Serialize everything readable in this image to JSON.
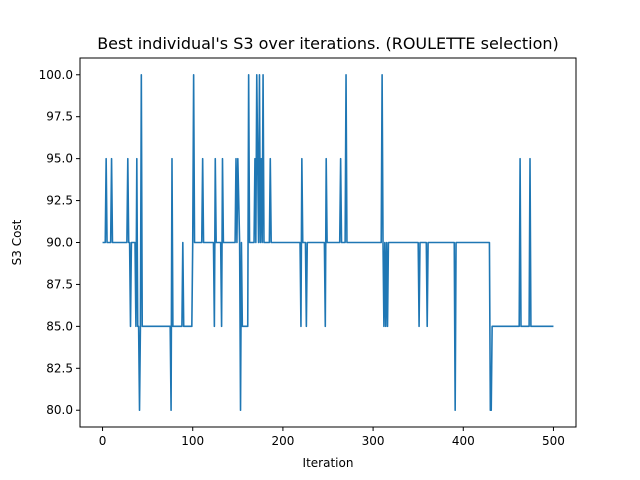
{
  "chart_data": {
    "type": "line",
    "title": "Best individual's S3 over iterations. (ROULETTE selection)",
    "xlabel": "Iteration",
    "ylabel": "S3 Cost",
    "xlim": [
      -25,
      525
    ],
    "ylim": [
      79,
      101
    ],
    "xticks": [
      0,
      100,
      200,
      300,
      400,
      500
    ],
    "yticks": [
      80.0,
      82.5,
      85.0,
      87.5,
      90.0,
      92.5,
      95.0,
      97.5,
      100.0
    ],
    "ytick_labels": [
      "80.0",
      "82.5",
      "85.0",
      "87.5",
      "90.0",
      "92.5",
      "95.0",
      "97.5",
      "100.0"
    ],
    "grid": false,
    "color": "#1f77b4",
    "series": [
      {
        "x": [
          0,
          3,
          4,
          5,
          6,
          9,
          10,
          11,
          12,
          27,
          28,
          29,
          30,
          31,
          32,
          35,
          36,
          37,
          38,
          39,
          40,
          41,
          42,
          43,
          44,
          45,
          46,
          75,
          76,
          77,
          78,
          87,
          88,
          89,
          90,
          99,
          100,
          101,
          102,
          110,
          111,
          112,
          113,
          123,
          124,
          125,
          126,
          131,
          132,
          133,
          134,
          147,
          148,
          149,
          150,
          152,
          153,
          154,
          155,
          160,
          161,
          162,
          163,
          168,
          169,
          170,
          171,
          173,
          174,
          175,
          176,
          177,
          178,
          179,
          180,
          185,
          186,
          187,
          188,
          219,
          220,
          221,
          222,
          225,
          226,
          227,
          228,
          246,
          247,
          248,
          249,
          263,
          264,
          265,
          266,
          269,
          270,
          271,
          272,
          309,
          310,
          311,
          312,
          313,
          314,
          315,
          316,
          317,
          318,
          350,
          351,
          352,
          353,
          359,
          360,
          361,
          362,
          390,
          391,
          392,
          393,
          429,
          430,
          431,
          432,
          433,
          434,
          462,
          463,
          464,
          465,
          473,
          474,
          475,
          476,
          500
        ],
        "y": [
          90,
          90,
          95,
          90,
          90,
          90,
          95,
          90,
          90,
          90,
          95,
          90,
          90,
          85,
          90,
          90,
          90,
          85,
          95,
          85,
          85,
          80,
          85,
          100,
          85,
          85,
          85,
          85,
          80,
          95,
          85,
          85,
          85,
          90,
          85,
          85,
          90,
          100,
          90,
          90,
          95,
          90,
          90,
          90,
          85,
          95,
          90,
          90,
          85,
          95,
          90,
          90,
          95,
          90,
          95,
          90,
          80,
          90,
          85,
          85,
          85,
          100,
          90,
          90,
          95,
          90,
          100,
          90,
          100,
          90,
          95,
          90,
          100,
          90,
          90,
          90,
          95,
          90,
          90,
          90,
          85,
          95,
          90,
          90,
          85,
          90,
          90,
          90,
          85,
          95,
          90,
          90,
          95,
          90,
          90,
          90,
          100,
          90,
          90,
          90,
          100,
          90,
          85,
          90,
          85,
          90,
          85,
          90,
          90,
          90,
          85,
          90,
          90,
          90,
          85,
          90,
          90,
          90,
          80,
          90,
          90,
          90,
          80,
          80,
          85,
          85,
          85,
          85,
          95,
          85,
          85,
          85,
          95,
          85,
          85,
          85
        ]
      }
    ]
  }
}
